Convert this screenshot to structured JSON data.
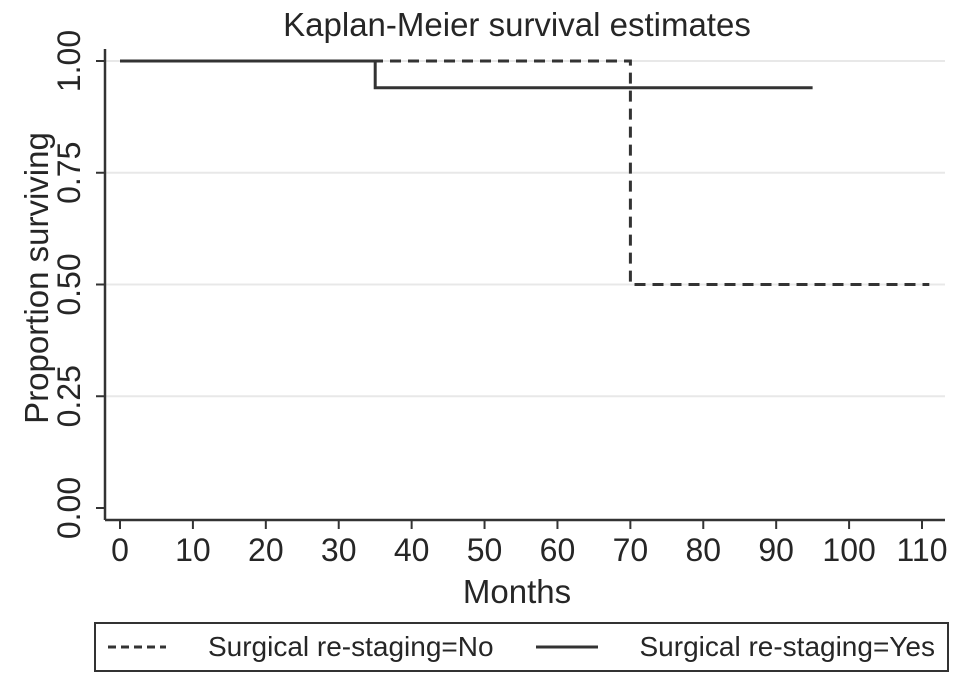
{
  "chart_data": {
    "type": "line",
    "subtype": "kaplan-meier-step",
    "title": "Kaplan-Meier survival estimates",
    "xlabel": "Months",
    "ylabel": "Proportion surviving",
    "xlim": [
      0,
      110
    ],
    "ylim": [
      0,
      1
    ],
    "xticks": [
      "0",
      "10",
      "20",
      "30",
      "40",
      "50",
      "60",
      "70",
      "80",
      "90",
      "100",
      "110"
    ],
    "yticks": [
      "0.00",
      "0.25",
      "0.50",
      "0.75",
      "1.00"
    ],
    "grid": "horizontal-light-gray-at-yticks",
    "legend_position": "bottom",
    "colors": {
      "line": "#333333",
      "text": "#262626",
      "grid": "#e8e8e8",
      "background": "#ffffff"
    },
    "series": [
      {
        "name": "Surgical re-staging=No",
        "style": "dashed",
        "points": [
          [
            0,
            1.0
          ],
          [
            70,
            1.0
          ],
          [
            70,
            0.5
          ],
          [
            111,
            0.5
          ]
        ]
      },
      {
        "name": "Surgical re-staging=Yes",
        "style": "solid",
        "points": [
          [
            0,
            1.0
          ],
          [
            35,
            1.0
          ],
          [
            35,
            0.94
          ],
          [
            95,
            0.94
          ]
        ]
      }
    ]
  }
}
